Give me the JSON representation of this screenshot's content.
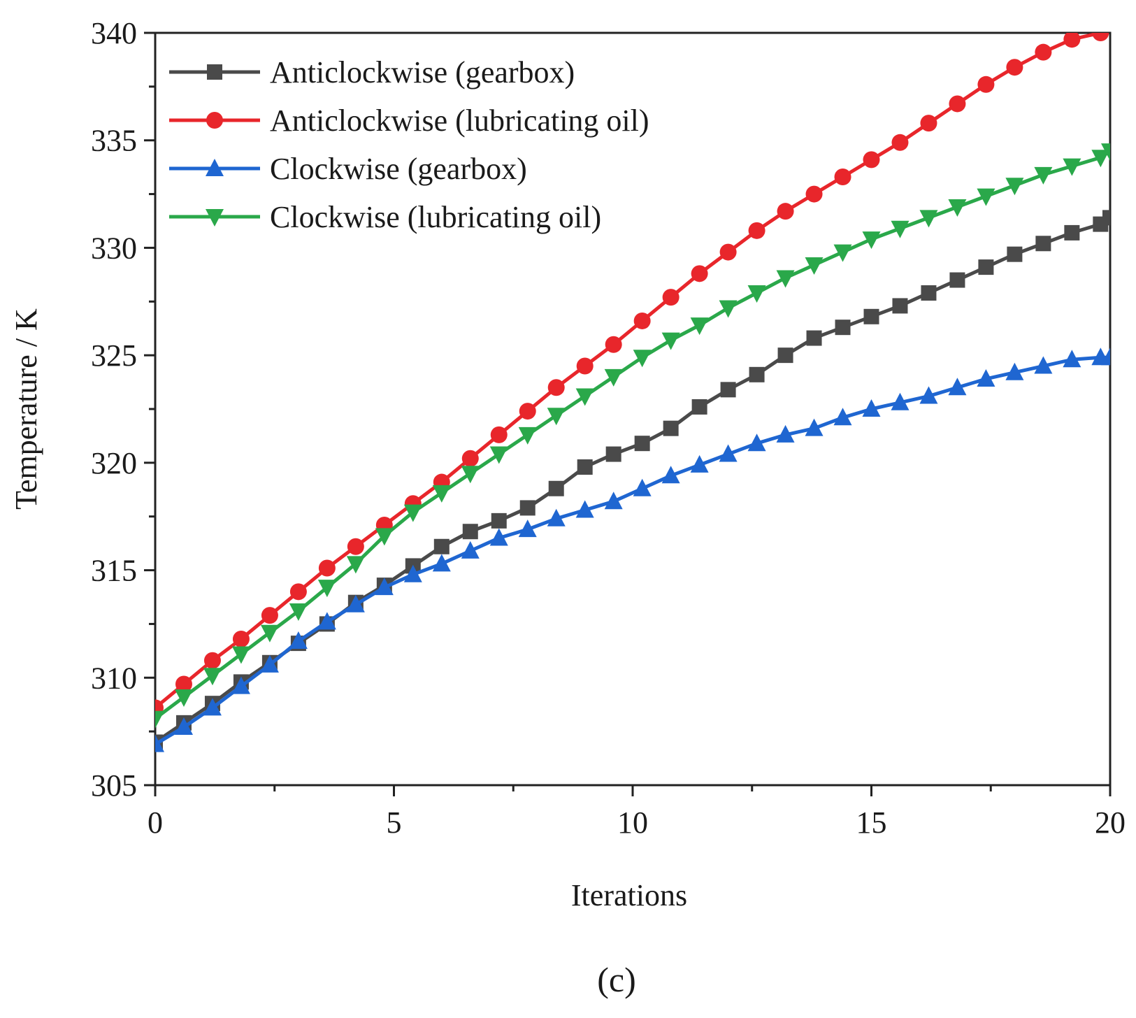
{
  "chart_data": {
    "type": "line",
    "title": "",
    "xlabel": "Iterations",
    "ylabel": "Temperature / K",
    "xlim": [
      0,
      20
    ],
    "ylim": [
      305,
      340
    ],
    "x_ticks": [
      0,
      5,
      10,
      15,
      20
    ],
    "y_ticks": [
      305,
      310,
      315,
      320,
      325,
      330,
      335,
      340
    ],
    "grid": false,
    "legend_position": "top-left",
    "caption": "(c)",
    "series": [
      {
        "name": "Anticlockwise (gearbox)",
        "color": "#4a4a4a",
        "marker": "square",
        "x": [
          0,
          0.6,
          1.2,
          1.8,
          2.4,
          3.0,
          3.6,
          4.2,
          4.8,
          5.4,
          6.0,
          6.6,
          7.2,
          7.8,
          8.4,
          9.0,
          9.6,
          10.2,
          10.8,
          11.4,
          12.0,
          12.6,
          13.2,
          13.8,
          14.4,
          15.0,
          15.6,
          16.2,
          16.8,
          17.4,
          18.0,
          18.6,
          19.2,
          19.8,
          20.0
        ],
        "y": [
          307.0,
          307.9,
          308.8,
          309.8,
          310.7,
          311.6,
          312.5,
          313.5,
          314.3,
          315.2,
          316.1,
          316.8,
          317.3,
          317.9,
          318.8,
          319.8,
          320.4,
          320.9,
          321.6,
          322.6,
          323.4,
          324.1,
          325.0,
          325.8,
          326.3,
          326.8,
          327.3,
          327.9,
          328.5,
          329.1,
          329.7,
          330.2,
          330.7,
          331.1,
          331.4
        ]
      },
      {
        "name": "Anticlockwise (lubricating oil)",
        "color": "#e8262b",
        "marker": "circle",
        "x": [
          0,
          0.6,
          1.2,
          1.8,
          2.4,
          3.0,
          3.6,
          4.2,
          4.8,
          5.4,
          6.0,
          6.6,
          7.2,
          7.8,
          8.4,
          9.0,
          9.6,
          10.2,
          10.8,
          11.4,
          12.0,
          12.6,
          13.2,
          13.8,
          14.4,
          15.0,
          15.6,
          16.2,
          16.8,
          17.4,
          18.0,
          18.6,
          19.2,
          19.8
        ],
        "y": [
          308.6,
          309.7,
          310.8,
          311.8,
          312.9,
          314.0,
          315.1,
          316.1,
          317.1,
          318.1,
          319.1,
          320.2,
          321.3,
          322.4,
          323.5,
          324.5,
          325.5,
          326.6,
          327.7,
          328.8,
          329.8,
          330.8,
          331.7,
          332.5,
          333.3,
          334.1,
          334.9,
          335.8,
          336.7,
          337.6,
          338.4,
          339.1,
          339.7,
          340.0
        ]
      },
      {
        "name": "Clockwise (gearbox)",
        "color": "#1f66d1",
        "marker": "triangle-up",
        "x": [
          0,
          0.6,
          1.2,
          1.8,
          2.4,
          3.0,
          3.6,
          4.2,
          4.8,
          5.4,
          6.0,
          6.6,
          7.2,
          7.8,
          8.4,
          9.0,
          9.6,
          10.2,
          10.8,
          11.4,
          12.0,
          12.6,
          13.2,
          13.8,
          14.4,
          15.0,
          15.6,
          16.2,
          16.8,
          17.4,
          18.0,
          18.6,
          19.2,
          19.8,
          20.0
        ],
        "y": [
          306.9,
          307.7,
          308.6,
          309.6,
          310.6,
          311.7,
          312.6,
          313.4,
          314.2,
          314.8,
          315.3,
          315.9,
          316.5,
          316.9,
          317.4,
          317.8,
          318.2,
          318.8,
          319.4,
          319.9,
          320.4,
          320.9,
          321.3,
          321.6,
          322.1,
          322.5,
          322.8,
          323.1,
          323.5,
          323.9,
          324.2,
          324.5,
          324.8,
          324.9,
          324.9
        ]
      },
      {
        "name": "Clockwise (lubricating oil)",
        "color": "#2aa84a",
        "marker": "triangle-down",
        "x": [
          0,
          0.6,
          1.2,
          1.8,
          2.4,
          3.0,
          3.6,
          4.2,
          4.8,
          5.4,
          6.0,
          6.6,
          7.2,
          7.8,
          8.4,
          9.0,
          9.6,
          10.2,
          10.8,
          11.4,
          12.0,
          12.6,
          13.2,
          13.8,
          14.4,
          15.0,
          15.6,
          16.2,
          16.8,
          17.4,
          18.0,
          18.6,
          19.2,
          19.8,
          20.0
        ],
        "y": [
          308.1,
          309.1,
          310.1,
          311.1,
          312.1,
          313.1,
          314.2,
          315.3,
          316.6,
          317.7,
          318.6,
          319.5,
          320.4,
          321.3,
          322.2,
          323.1,
          324.0,
          324.9,
          325.7,
          326.4,
          327.2,
          327.9,
          328.6,
          329.2,
          329.8,
          330.4,
          330.9,
          331.4,
          331.9,
          332.4,
          332.9,
          333.4,
          333.8,
          334.2,
          334.5
        ]
      }
    ]
  }
}
